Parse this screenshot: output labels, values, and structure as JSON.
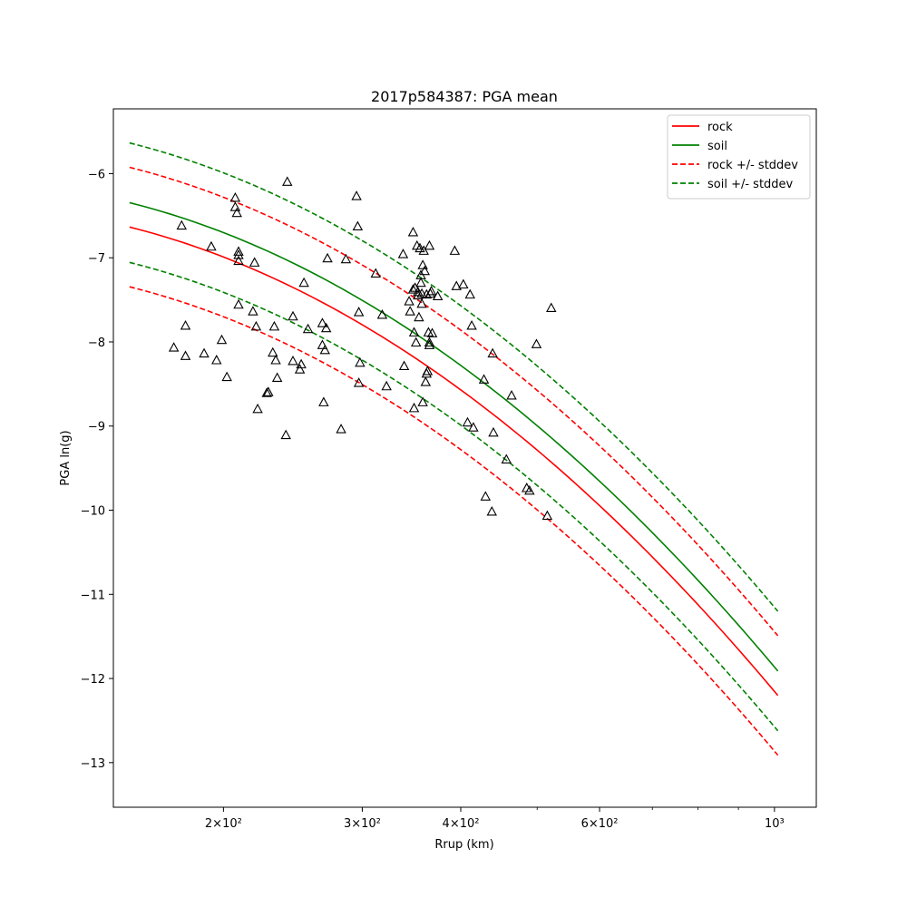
{
  "chart_data": {
    "type": "line",
    "title": "2017p584387: PGA mean",
    "xlabel": "Rrup (km)",
    "ylabel": "PGA ln(g)",
    "xscale": "log",
    "xlim": [
      145,
      1130
    ],
    "ylim": [
      -13.53,
      -5.23
    ],
    "grid": false,
    "legend_position": "top-right",
    "x_ticks": [
      {
        "value": 200,
        "label": "2×10²"
      },
      {
        "value": 300,
        "label": "3×10²"
      },
      {
        "value": 400,
        "label": "4×10²"
      },
      {
        "value": 600,
        "label": "6×10²"
      },
      {
        "value": 1000,
        "label": "10³"
      }
    ],
    "x_minor_ticks": [
      500,
      700,
      800,
      900
    ],
    "y_ticks": [
      {
        "value": -6,
        "label": "−6"
      },
      {
        "value": -7,
        "label": "−7"
      },
      {
        "value": -8,
        "label": "−8"
      },
      {
        "value": -9,
        "label": "−9"
      },
      {
        "value": -10,
        "label": "−10"
      },
      {
        "value": -11,
        "label": "−11"
      },
      {
        "value": -12,
        "label": "−12"
      },
      {
        "value": -13,
        "label": "−13"
      }
    ],
    "series": [
      {
        "name": "rock",
        "color": "#ff0000",
        "style": "solid",
        "in_legend": true,
        "x": [
          152,
          200,
          300,
          400,
          500,
          600,
          700,
          800,
          900,
          1010
        ],
        "y": [
          -6.53,
          -7.05,
          -7.94,
          -8.65,
          -9.27,
          -9.85,
          -10.42,
          -10.99,
          -11.62,
          -12.44
        ]
      },
      {
        "name": "soil",
        "color": "#008000",
        "style": "solid",
        "in_legend": true,
        "x": [
          152,
          200,
          300,
          400,
          500,
          600,
          700,
          800,
          900,
          1010
        ],
        "y": [
          -6.24,
          -6.76,
          -7.65,
          -8.36,
          -8.98,
          -9.56,
          -10.13,
          -10.7,
          -11.33,
          -12.15
        ]
      },
      {
        "name": "rock +/- stddev",
        "color": "#ff0000",
        "style": "dashed",
        "in_legend": true,
        "x": [
          152,
          200,
          300,
          400,
          500,
          600,
          700,
          800,
          900,
          1010
        ],
        "y": [
          -5.82,
          -6.34,
          -7.23,
          -7.94,
          -8.56,
          -9.14,
          -9.71,
          -10.28,
          -10.91,
          -11.73
        ]
      },
      {
        "name": "",
        "color": "#ff0000",
        "style": "dashed",
        "in_legend": false,
        "x": [
          152,
          200,
          300,
          400,
          500,
          600,
          700,
          800,
          900,
          1010
        ],
        "y": [
          -7.24,
          -7.76,
          -8.65,
          -9.36,
          -9.98,
          -10.56,
          -11.13,
          -11.7,
          -12.33,
          -13.15
        ]
      },
      {
        "name": "soil +/- stddev",
        "color": "#008000",
        "style": "dashed",
        "in_legend": true,
        "x": [
          152,
          200,
          300,
          400,
          500,
          600,
          700,
          800,
          900,
          1010
        ],
        "y": [
          -5.53,
          -6.05,
          -6.94,
          -7.65,
          -8.27,
          -8.85,
          -9.42,
          -9.99,
          -10.62,
          -11.44
        ]
      },
      {
        "name": "",
        "color": "#008000",
        "style": "dashed",
        "in_legend": false,
        "x": [
          152,
          200,
          300,
          400,
          500,
          600,
          700,
          800,
          900,
          1010
        ],
        "y": [
          -6.95,
          -7.47,
          -8.36,
          -9.07,
          -9.69,
          -10.27,
          -10.84,
          -11.41,
          -12.04,
          -12.86
        ]
      }
    ],
    "observations": {
      "marker": "triangle",
      "color": "#000000",
      "points": [
        [
          177,
          -6.62
        ],
        [
          173,
          -8.07
        ],
        [
          179,
          -7.81
        ],
        [
          179,
          -8.17
        ],
        [
          189,
          -8.14
        ],
        [
          193,
          -6.87
        ],
        [
          196,
          -8.22
        ],
        [
          199,
          -7.98
        ],
        [
          202,
          -8.42
        ],
        [
          207,
          -6.29
        ],
        [
          207,
          -6.4
        ],
        [
          208,
          -6.47
        ],
        [
          209,
          -6.93
        ],
        [
          209,
          -6.97
        ],
        [
          209,
          -7.04
        ],
        [
          209,
          -7.56
        ],
        [
          219,
          -7.06
        ],
        [
          218,
          -7.64
        ],
        [
          220,
          -7.82
        ],
        [
          221,
          -8.8
        ],
        [
          227,
          -8.61
        ],
        [
          228,
          -8.6
        ],
        [
          231,
          -8.13
        ],
        [
          232,
          -7.82
        ],
        [
          233,
          -8.22
        ],
        [
          234,
          -8.43
        ],
        [
          241,
          -6.1
        ],
        [
          240,
          -9.11
        ],
        [
          245,
          -7.7
        ],
        [
          245,
          -8.23
        ],
        [
          250,
          -8.33
        ],
        [
          251,
          -8.27
        ],
        [
          253,
          -7.3
        ],
        [
          256,
          -7.85
        ],
        [
          267,
          -7.78
        ],
        [
          267,
          -8.04
        ],
        [
          268,
          -8.72
        ],
        [
          269,
          -8.1
        ],
        [
          270,
          -7.84
        ],
        [
          271,
          -7.01
        ],
        [
          282,
          -9.04
        ],
        [
          286,
          -7.02
        ],
        [
          295,
          -6.27
        ],
        [
          296,
          -6.63
        ],
        [
          297,
          -7.65
        ],
        [
          297,
          -8.49
        ],
        [
          298,
          -8.25
        ],
        [
          312,
          -7.19
        ],
        [
          318,
          -7.68
        ],
        [
          322,
          -8.53
        ],
        [
          338,
          -6.96
        ],
        [
          339,
          -8.29
        ],
        [
          344,
          -7.52
        ],
        [
          345,
          -7.64
        ],
        [
          348,
          -6.7
        ],
        [
          348,
          -7.38
        ],
        [
          349,
          -7.89
        ],
        [
          349,
          -8.79
        ],
        [
          350,
          -7.36
        ],
        [
          351,
          -8.01
        ],
        [
          352,
          -6.86
        ],
        [
          353,
          -7.41
        ],
        [
          353,
          -7.45
        ],
        [
          354,
          -7.71
        ],
        [
          355,
          -6.89
        ],
        [
          356,
          -7.3
        ],
        [
          356,
          -7.21
        ],
        [
          357,
          -7.43
        ],
        [
          357,
          -7.55
        ],
        [
          358,
          -7.09
        ],
        [
          358,
          -8.72
        ],
        [
          359,
          -6.92
        ],
        [
          360,
          -7.16
        ],
        [
          361,
          -8.48
        ],
        [
          362,
          -7.44
        ],
        [
          362,
          -8.38
        ],
        [
          363,
          -8.35
        ],
        [
          364,
          -7.89
        ],
        [
          365,
          -8.01
        ],
        [
          365,
          -8.04
        ],
        [
          365,
          -6.86
        ],
        [
          366,
          -7.43
        ],
        [
          367,
          -7.4
        ],
        [
          368,
          -7.9
        ],
        [
          374,
          -7.46
        ],
        [
          393,
          -6.92
        ],
        [
          395,
          -7.34
        ],
        [
          403,
          -7.32
        ],
        [
          408,
          -8.96
        ],
        [
          411,
          -7.44
        ],
        [
          413,
          -7.81
        ],
        [
          415,
          -9.02
        ],
        [
          428,
          -8.45
        ],
        [
          430,
          -9.84
        ],
        [
          438,
          -10.02
        ],
        [
          439,
          -8.14
        ],
        [
          440,
          -9.08
        ],
        [
          457,
          -9.4
        ],
        [
          464,
          -8.64
        ],
        [
          485,
          -9.74
        ],
        [
          489,
          -9.77
        ],
        [
          499,
          -8.03
        ],
        [
          515,
          -10.07
        ],
        [
          521,
          -7.6
        ]
      ]
    }
  }
}
